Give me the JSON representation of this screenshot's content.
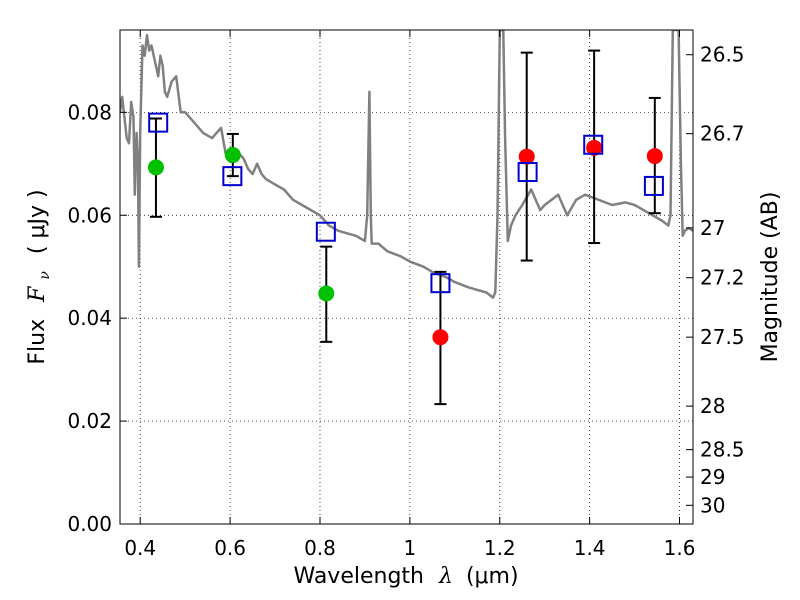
{
  "chart_data": {
    "type": "scatter",
    "xlabel_main": "Wavelength",
    "xlabel_symbol": "λ",
    "xlabel_unit": "(μm)",
    "ylabel_main": "Flux",
    "ylabel_symbol": "F",
    "ylabel_subscript": "ν",
    "ylabel_unit": "( μJy )",
    "y2label": "Magnitude (AB)",
    "xlim": [
      0.355,
      1.63
    ],
    "ylim": [
      0.0,
      0.096
    ],
    "xticks": [
      0.4,
      0.6,
      0.8,
      1.0,
      1.2,
      1.4,
      1.6
    ],
    "xtick_labels": [
      "0.4",
      "0.6",
      "0.8",
      "1",
      "1.2",
      "1.4",
      "1.6"
    ],
    "yticks": [
      0.0,
      0.02,
      0.04,
      0.06,
      0.08
    ],
    "ytick_labels": [
      "0.00",
      "0.02",
      "0.04",
      "0.06",
      "0.08"
    ],
    "mag_ticks": [
      "26.5",
      "26.7",
      "27",
      "27.2",
      "27.5",
      "28",
      "28.5",
      "29",
      "30"
    ],
    "grid": true,
    "colors": {
      "template": "#808080",
      "observed_green": "#00c000",
      "observed_red": "#ff0000",
      "model_box": "#0000cc",
      "errorbar": "#000000"
    },
    "observed": [
      {
        "x": 0.435,
        "y": 0.0693,
        "err_low": 0.0597,
        "err_high": 0.0788,
        "color": "green"
      },
      {
        "x": 0.606,
        "y": 0.0717,
        "err_low": 0.0676,
        "err_high": 0.0758,
        "color": "green"
      },
      {
        "x": 0.814,
        "y": 0.0448,
        "err_low": 0.0354,
        "err_high": 0.0539,
        "color": "green"
      },
      {
        "x": 1.068,
        "y": 0.0363,
        "err_low": 0.0233,
        "err_high": 0.049,
        "color": "red"
      },
      {
        "x": 1.26,
        "y": 0.0714,
        "err_low": 0.0512,
        "err_high": 0.0916,
        "color": "red"
      },
      {
        "x": 1.41,
        "y": 0.0731,
        "err_low": 0.0546,
        "err_high": 0.092,
        "color": "red"
      },
      {
        "x": 1.545,
        "y": 0.0715,
        "err_low": 0.0604,
        "err_high": 0.0828,
        "color": "red"
      }
    ],
    "model_fluxes": [
      {
        "x": 0.44,
        "y": 0.078
      },
      {
        "x": 0.605,
        "y": 0.0676
      },
      {
        "x": 0.813,
        "y": 0.0568
      },
      {
        "x": 1.068,
        "y": 0.0468
      },
      {
        "x": 1.262,
        "y": 0.0684
      },
      {
        "x": 1.408,
        "y": 0.0737
      },
      {
        "x": 1.543,
        "y": 0.0657
      }
    ],
    "template_spectrum": [
      [
        0.355,
        0.08
      ],
      [
        0.36,
        0.083
      ],
      [
        0.37,
        0.075
      ],
      [
        0.375,
        0.074
      ],
      [
        0.38,
        0.082
      ],
      [
        0.385,
        0.079
      ],
      [
        0.388,
        0.064
      ],
      [
        0.392,
        0.076
      ],
      [
        0.395,
        0.07
      ],
      [
        0.397,
        0.05
      ],
      [
        0.4,
        0.076
      ],
      [
        0.405,
        0.093
      ],
      [
        0.41,
        0.091
      ],
      [
        0.415,
        0.095
      ],
      [
        0.42,
        0.092
      ],
      [
        0.425,
        0.093
      ],
      [
        0.43,
        0.091
      ],
      [
        0.435,
        0.089
      ],
      [
        0.44,
        0.087
      ],
      [
        0.445,
        0.091
      ],
      [
        0.45,
        0.089
      ],
      [
        0.455,
        0.084
      ],
      [
        0.46,
        0.083
      ],
      [
        0.47,
        0.086
      ],
      [
        0.48,
        0.087
      ],
      [
        0.49,
        0.08
      ],
      [
        0.5,
        0.08
      ],
      [
        0.52,
        0.078
      ],
      [
        0.54,
        0.076
      ],
      [
        0.56,
        0.075
      ],
      [
        0.58,
        0.077
      ],
      [
        0.59,
        0.072
      ],
      [
        0.6,
        0.073
      ],
      [
        0.62,
        0.072
      ],
      [
        0.63,
        0.071
      ],
      [
        0.64,
        0.069
      ],
      [
        0.65,
        0.068
      ],
      [
        0.66,
        0.07
      ],
      [
        0.67,
        0.068
      ],
      [
        0.68,
        0.067
      ],
      [
        0.7,
        0.066
      ],
      [
        0.72,
        0.065
      ],
      [
        0.74,
        0.063
      ],
      [
        0.76,
        0.062
      ],
      [
        0.78,
        0.061
      ],
      [
        0.8,
        0.06
      ],
      [
        0.82,
        0.058
      ],
      [
        0.84,
        0.057
      ],
      [
        0.86,
        0.0565
      ],
      [
        0.88,
        0.056
      ],
      [
        0.9,
        0.055
      ],
      [
        0.905,
        0.06
      ],
      [
        0.91,
        0.084
      ],
      [
        0.913,
        0.06
      ],
      [
        0.915,
        0.0545
      ],
      [
        0.93,
        0.0545
      ],
      [
        0.95,
        0.053
      ],
      [
        0.98,
        0.052
      ],
      [
        1.0,
        0.051
      ],
      [
        1.03,
        0.05
      ],
      [
        1.05,
        0.049
      ],
      [
        1.08,
        0.048
      ],
      [
        1.1,
        0.047
      ],
      [
        1.13,
        0.046
      ],
      [
        1.15,
        0.0455
      ],
      [
        1.17,
        0.045
      ],
      [
        1.185,
        0.044
      ],
      [
        1.19,
        0.045
      ],
      [
        1.195,
        0.06
      ],
      [
        1.2,
        0.096
      ],
      [
        1.208,
        0.096
      ],
      [
        1.212,
        0.075
      ],
      [
        1.218,
        0.055
      ],
      [
        1.225,
        0.058
      ],
      [
        1.235,
        0.06
      ],
      [
        1.25,
        0.062
      ],
      [
        1.27,
        0.065
      ],
      [
        1.29,
        0.061
      ],
      [
        1.3,
        0.062
      ],
      [
        1.33,
        0.064
      ],
      [
        1.35,
        0.06
      ],
      [
        1.37,
        0.063
      ],
      [
        1.39,
        0.064
      ],
      [
        1.42,
        0.063
      ],
      [
        1.45,
        0.062
      ],
      [
        1.48,
        0.0625
      ],
      [
        1.5,
        0.062
      ],
      [
        1.52,
        0.061
      ],
      [
        1.54,
        0.06
      ],
      [
        1.56,
        0.059
      ],
      [
        1.575,
        0.058
      ],
      [
        1.58,
        0.06
      ],
      [
        1.585,
        0.096
      ],
      [
        1.598,
        0.096
      ],
      [
        1.603,
        0.07
      ],
      [
        1.607,
        0.056
      ],
      [
        1.612,
        0.057
      ],
      [
        1.62,
        0.0575
      ],
      [
        1.63,
        0.057
      ]
    ]
  }
}
